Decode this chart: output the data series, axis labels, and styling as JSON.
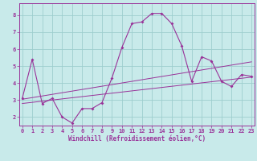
{
  "xlabel": "Windchill (Refroidissement éolien,°C)",
  "background_color": "#c8eaea",
  "grid_color": "#9ecece",
  "line_color": "#993399",
  "x_ticks": [
    0,
    1,
    2,
    3,
    4,
    5,
    6,
    7,
    8,
    9,
    10,
    11,
    12,
    13,
    14,
    15,
    16,
    17,
    18,
    19,
    20,
    21,
    22,
    23
  ],
  "y_ticks": [
    2,
    3,
    4,
    5,
    6,
    7,
    8
  ],
  "xlim": [
    -0.3,
    23.3
  ],
  "ylim": [
    1.5,
    8.7
  ],
  "curve1_x": [
    0,
    1,
    2,
    3,
    4,
    5,
    6,
    7,
    8,
    9,
    10,
    11,
    12,
    13,
    14,
    15,
    16,
    17,
    18,
    19,
    20,
    21,
    22,
    23
  ],
  "curve1_y": [
    3.1,
    5.4,
    2.8,
    3.1,
    2.0,
    1.65,
    2.5,
    2.5,
    2.85,
    4.3,
    6.1,
    7.5,
    7.6,
    8.1,
    8.1,
    7.5,
    6.2,
    4.1,
    5.55,
    5.3,
    4.1,
    3.8,
    4.5,
    4.4
  ],
  "line1_x": [
    0,
    23
  ],
  "line1_y": [
    2.8,
    4.35
  ],
  "line2_x": [
    0,
    23
  ],
  "line2_y": [
    3.05,
    5.25
  ],
  "tick_fontsize": 5.0,
  "xlabel_fontsize": 5.5
}
